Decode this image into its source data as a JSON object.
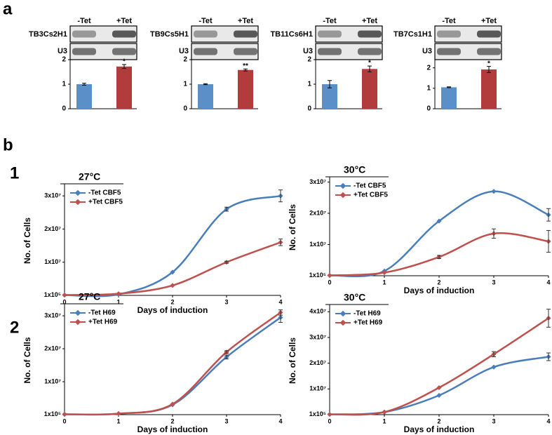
{
  "panel_labels": [
    "a",
    "b",
    "1",
    "2"
  ],
  "chart_data": [
    {
      "type": "bar",
      "title": "TB3Cs2H1",
      "loading_control": "U3",
      "categories": [
        "-Tet",
        "+Tet"
      ],
      "values": [
        1.0,
        1.72
      ],
      "errors": [
        0.04,
        0.08
      ],
      "colors": [
        "#5b8fc7",
        "#b23b3b"
      ],
      "significance": "*",
      "ylim": [
        0,
        2
      ],
      "yticks": [
        0,
        1,
        2
      ]
    },
    {
      "type": "bar",
      "title": "TB9Cs5H1",
      "loading_control": "U3",
      "categories": [
        "-Tet",
        "+Tet"
      ],
      "values": [
        1.0,
        1.58
      ],
      "errors": [
        0.02,
        0.04
      ],
      "colors": [
        "#5b8fc7",
        "#b23b3b"
      ],
      "significance": "**",
      "ylim": [
        0,
        2
      ],
      "yticks": [
        0,
        1,
        2
      ]
    },
    {
      "type": "bar",
      "title": "TB11Cs6H1",
      "loading_control": "U3",
      "categories": [
        "-Tet",
        "+Tet"
      ],
      "values": [
        1.0,
        1.62
      ],
      "errors": [
        0.15,
        0.12
      ],
      "colors": [
        "#5b8fc7",
        "#b23b3b"
      ],
      "significance": "*",
      "ylim": [
        0,
        2
      ],
      "yticks": [
        0,
        1,
        2
      ]
    },
    {
      "type": "bar",
      "title": "TB7Cs1H1",
      "loading_control": "U3",
      "categories": [
        "-Tet",
        "+Tet"
      ],
      "values": [
        1.05,
        1.92
      ],
      "errors": [
        0.02,
        0.15
      ],
      "colors": [
        "#5b8fc7",
        "#b23b3b"
      ],
      "significance": "*",
      "ylim": [
        0,
        2.4
      ],
      "yticks": [
        0,
        1,
        2
      ]
    },
    {
      "type": "line",
      "title": "27°C",
      "xlabel": "Days of induction",
      "ylabel": "No. of Cells",
      "legend": "upper left",
      "x": [
        0,
        1,
        2,
        3,
        4
      ],
      "xlim": [
        0,
        4
      ],
      "xticks": [
        0,
        1,
        2,
        3,
        4
      ],
      "ylim": [
        0,
        33000000
      ],
      "yticks": [
        {
          "value": 100000,
          "label": "1x10⁵"
        },
        {
          "value": 10000000,
          "label": "1x10⁷"
        },
        {
          "value": 20000000,
          "label": "2x10⁷"
        },
        {
          "value": 30000000,
          "label": "3x10⁷"
        }
      ],
      "series": [
        {
          "name": "-Tet CBF5",
          "color": "#4a7ebb",
          "values": [
            100000,
            300000,
            7000000,
            26000000,
            30000000
          ],
          "errors": [
            0,
            0,
            0,
            600000,
            1800000
          ]
        },
        {
          "name": "+Tet CBF5",
          "color": "#c0504d",
          "values": [
            100000,
            500000,
            3000000,
            10000000,
            16000000
          ],
          "errors": [
            0,
            0,
            0,
            300000,
            1000000
          ]
        }
      ]
    },
    {
      "type": "line",
      "title": "30°C",
      "xlabel": "Days of induction",
      "ylabel": "No. of Cells",
      "legend": "upper left",
      "x": [
        0,
        1,
        2,
        3,
        4
      ],
      "xlim": [
        0,
        4
      ],
      "xticks": [
        0,
        1,
        2,
        3,
        4
      ],
      "ylim": [
        0,
        31000000
      ],
      "yticks": [
        {
          "value": 100000,
          "label": "1x10⁵"
        },
        {
          "value": 10000000,
          "label": "1x10⁷"
        },
        {
          "value": 20000000,
          "label": "2x10⁷"
        },
        {
          "value": 30000000,
          "label": "3x10⁷"
        }
      ],
      "series": [
        {
          "name": "-Tet CBF5",
          "color": "#4a7ebb",
          "values": [
            100000,
            1500000,
            17500000,
            27000000,
            19500000
          ],
          "errors": [
            0,
            0,
            0,
            0,
            2000000
          ]
        },
        {
          "name": "+Tet CBF5",
          "color": "#c0504d",
          "values": [
            100000,
            1000000,
            6000000,
            13500000,
            11000000
          ],
          "errors": [
            0,
            0,
            500000,
            1500000,
            3500000
          ]
        }
      ]
    },
    {
      "type": "line",
      "title": "27°C",
      "xlabel": "Days of induction",
      "ylabel": "No. of Cells",
      "legend": "upper left",
      "x": [
        0,
        1,
        2,
        3,
        4
      ],
      "xlim": [
        0,
        4
      ],
      "xticks": [
        0,
        1,
        2,
        3,
        4
      ],
      "ylim": [
        0,
        33000000
      ],
      "yticks": [
        {
          "value": 100000,
          "label": "1x10⁵"
        },
        {
          "value": 10000000,
          "label": "1x10⁷"
        },
        {
          "value": 20000000,
          "label": "2x10⁷"
        },
        {
          "value": 30000000,
          "label": "3x10⁷"
        }
      ],
      "series": [
        {
          "name": "-Tet H69",
          "color": "#4a7ebb",
          "values": [
            100000,
            300000,
            3000000,
            17500000,
            29500000
          ],
          "errors": [
            0,
            0,
            0,
            600000,
            1500000
          ]
        },
        {
          "name": "+Tet H69",
          "color": "#c0504d",
          "values": [
            100000,
            300000,
            3200000,
            19000000,
            31000000
          ],
          "errors": [
            0,
            0,
            0,
            400000,
            800000
          ]
        }
      ]
    },
    {
      "type": "line",
      "title": "30°C",
      "xlabel": "Days of induction",
      "ylabel": "No. of Cells",
      "legend": "upper left",
      "x": [
        0,
        1,
        2,
        3,
        4
      ],
      "xlim": [
        0,
        4
      ],
      "xticks": [
        0,
        1,
        2,
        3,
        4
      ],
      "ylim": [
        0,
        42000000
      ],
      "yticks": [
        {
          "value": 100000,
          "label": "1x10⁵"
        },
        {
          "value": 10000000,
          "label": "1x10⁷"
        },
        {
          "value": 20000000,
          "label": "2x10⁷"
        },
        {
          "value": 30000000,
          "label": "3x10⁷"
        },
        {
          "value": 40000000,
          "label": "4x10⁷"
        }
      ],
      "series": [
        {
          "name": "-Tet H69",
          "color": "#4a7ebb",
          "values": [
            100000,
            1000000,
            7500000,
            18500000,
            22500000
          ],
          "errors": [
            0,
            0,
            0,
            0,
            1500000
          ]
        },
        {
          "name": "+Tet H69",
          "color": "#c0504d",
          "values": [
            100000,
            1000000,
            10500000,
            23500000,
            37500000
          ],
          "errors": [
            0,
            0,
            0,
            1000000,
            3500000
          ]
        }
      ]
    }
  ]
}
